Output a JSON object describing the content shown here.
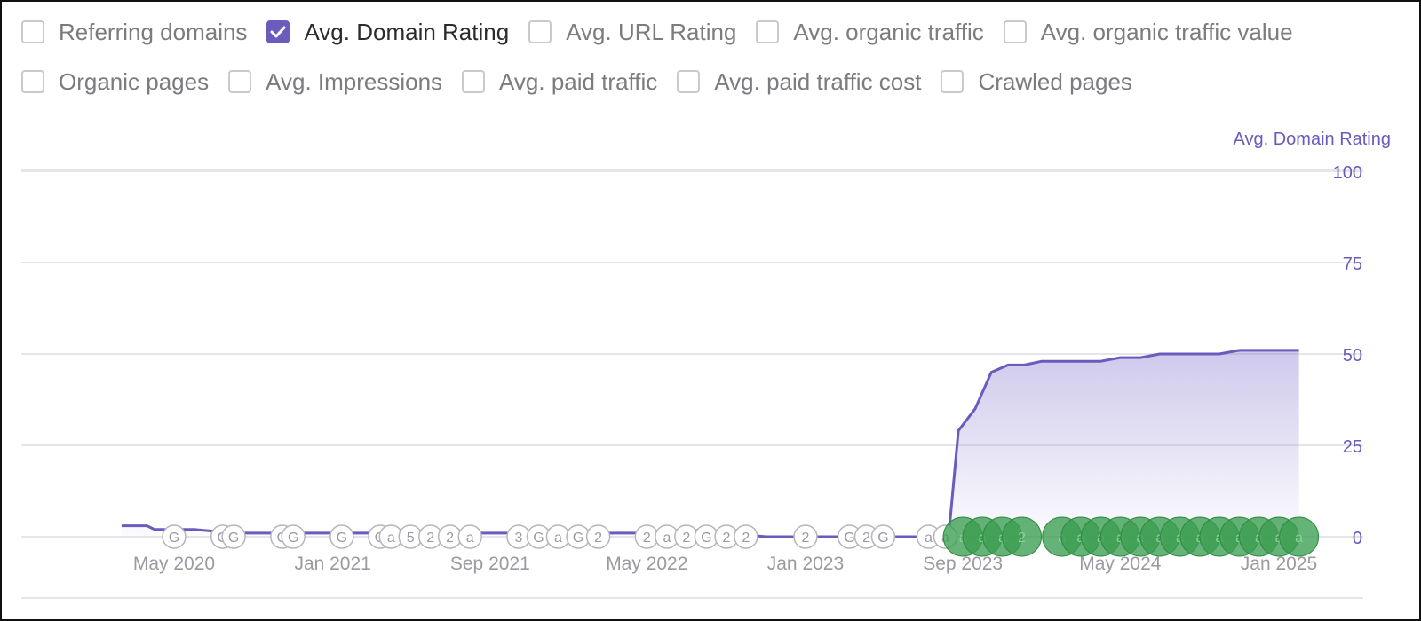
{
  "metrics_row1": [
    {
      "label": "Referring domains",
      "checked": false
    },
    {
      "label": "Avg. Domain Rating",
      "checked": true
    },
    {
      "label": "Avg. URL Rating",
      "checked": false
    },
    {
      "label": "Avg. organic traffic",
      "checked": false
    },
    {
      "label": "Avg. organic traffic value",
      "checked": false
    }
  ],
  "metrics_row2": [
    {
      "label": "Organic pages",
      "checked": false
    },
    {
      "label": "Avg. Impressions",
      "checked": false
    },
    {
      "label": "Avg. paid traffic",
      "checked": false
    },
    {
      "label": "Avg. paid traffic cost",
      "checked": false
    },
    {
      "label": "Crawled pages",
      "checked": false
    }
  ],
  "chart_data": {
    "type": "area",
    "series": [
      {
        "name": "Avg. Domain Rating",
        "color": "#6a5bbd",
        "x": [
          "2020-02-10",
          "2020-03-20",
          "2020-04-01",
          "2020-06-01",
          "2020-08-01",
          "2020-10-01",
          "2020-12-01",
          "2021-02-01",
          "2021-04-01",
          "2021-06-01",
          "2021-08-01",
          "2021-10-01",
          "2021-12-01",
          "2022-02-01",
          "2022-04-01",
          "2022-05-15",
          "2022-07-01",
          "2022-09-01",
          "2022-11-01",
          "2023-01-01",
          "2023-03-01",
          "2023-05-01",
          "2023-07-01",
          "2023-08-10",
          "2023-08-25",
          "2023-09-20",
          "2023-10-15",
          "2023-11-10",
          "2023-12-05",
          "2024-01-01",
          "2024-02-01",
          "2024-03-01",
          "2024-04-01",
          "2024-05-01",
          "2024-06-01",
          "2024-07-01",
          "2024-08-01",
          "2024-09-01",
          "2024-10-01",
          "2024-11-01",
          "2024-12-01",
          "2025-01-01",
          "2025-02-01"
        ],
        "values": [
          3,
          3,
          2,
          2,
          1,
          1,
          1,
          1,
          1,
          1,
          1,
          1,
          1,
          1,
          1,
          1,
          2,
          1,
          0,
          0,
          0,
          0,
          0,
          0,
          29,
          35,
          45,
          47,
          47,
          48,
          48,
          48,
          48,
          49,
          49,
          50,
          50,
          50,
          50,
          51,
          51,
          51,
          51
        ]
      }
    ],
    "x_tick_labels": [
      "May 2020",
      "Jan 2021",
      "Sep 2021",
      "May 2022",
      "Jan 2023",
      "Sep 2023",
      "May 2024",
      "Jan 2025"
    ],
    "x_tick_dates": [
      "2020-05-01",
      "2021-01-01",
      "2021-09-01",
      "2022-05-01",
      "2023-01-01",
      "2023-09-01",
      "2024-05-01",
      "2025-01-01"
    ],
    "y_ticks": [
      0,
      25,
      50,
      75,
      100
    ],
    "ylim": [
      0,
      100
    ],
    "grid": true,
    "annotations_gray": [
      {
        "date": "2020-05-01",
        "label": "G"
      },
      {
        "date": "2020-07-15",
        "label": "G"
      },
      {
        "date": "2020-08-01",
        "label": "G"
      },
      {
        "date": "2020-10-15",
        "label": "G"
      },
      {
        "date": "2020-11-01",
        "label": "G"
      },
      {
        "date": "2021-01-15",
        "label": "G"
      },
      {
        "date": "2021-03-15",
        "label": "G"
      },
      {
        "date": "2021-04-01",
        "label": "a"
      },
      {
        "date": "2021-05-01",
        "label": "5"
      },
      {
        "date": "2021-06-01",
        "label": "2"
      },
      {
        "date": "2021-07-01",
        "label": "2"
      },
      {
        "date": "2021-08-01",
        "label": "a"
      },
      {
        "date": "2021-10-15",
        "label": "3"
      },
      {
        "date": "2021-11-15",
        "label": "G"
      },
      {
        "date": "2021-12-15",
        "label": "a"
      },
      {
        "date": "2022-01-15",
        "label": "G"
      },
      {
        "date": "2022-02-15",
        "label": "2"
      },
      {
        "date": "2022-05-01",
        "label": "2"
      },
      {
        "date": "2022-06-01",
        "label": "a"
      },
      {
        "date": "2022-07-01",
        "label": "2"
      },
      {
        "date": "2022-08-01",
        "label": "G"
      },
      {
        "date": "2022-09-01",
        "label": "2"
      },
      {
        "date": "2022-10-01",
        "label": "2"
      },
      {
        "date": "2023-01-01",
        "label": "2"
      },
      {
        "date": "2023-03-10",
        "label": "G"
      },
      {
        "date": "2023-04-05",
        "label": "2"
      },
      {
        "date": "2023-05-01",
        "label": "G"
      },
      {
        "date": "2023-07-10",
        "label": "a"
      },
      {
        "date": "2023-08-05",
        "label": "a"
      }
    ],
    "annotations_green": [
      {
        "date": "2023-09-01",
        "label": "a"
      },
      {
        "date": "2023-10-01",
        "label": "a"
      },
      {
        "date": "2023-11-01",
        "label": "a"
      },
      {
        "date": "2023-12-01",
        "label": "2"
      },
      {
        "date": "2024-02-01",
        "label": "a"
      },
      {
        "date": "2024-03-01",
        "label": "a"
      },
      {
        "date": "2024-04-01",
        "label": "a"
      },
      {
        "date": "2024-05-01",
        "label": "a"
      },
      {
        "date": "2024-06-01",
        "label": "a"
      },
      {
        "date": "2024-07-01",
        "label": "a"
      },
      {
        "date": "2024-08-01",
        "label": "a"
      },
      {
        "date": "2024-09-01",
        "label": "a"
      },
      {
        "date": "2024-10-01",
        "label": "a"
      },
      {
        "date": "2024-11-01",
        "label": "a"
      },
      {
        "date": "2024-12-01",
        "label": "a"
      },
      {
        "date": "2025-01-01",
        "label": "a"
      },
      {
        "date": "2025-02-01",
        "label": "a"
      }
    ]
  }
}
